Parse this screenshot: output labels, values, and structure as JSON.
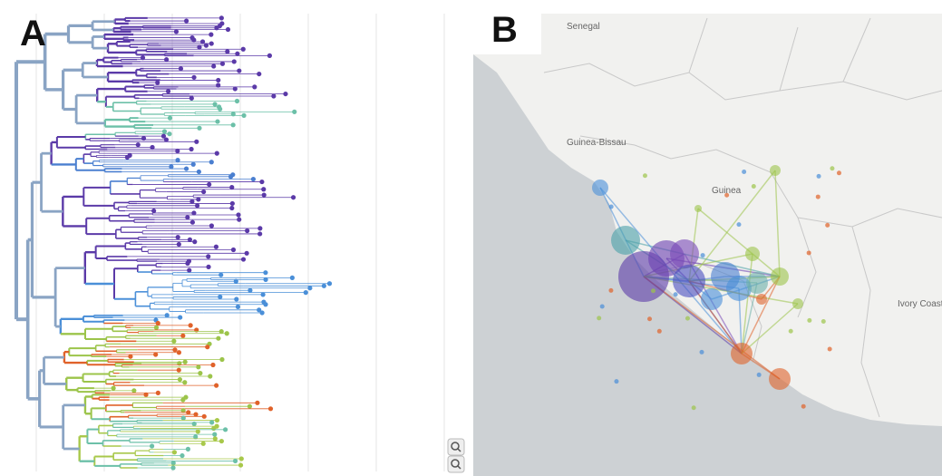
{
  "panels": [
    {
      "label": "A"
    },
    {
      "label": "B"
    }
  ],
  "map": {
    "labels": [
      "Senegal",
      "Guinea-Bissau",
      "Guinea",
      "Ivory Coast"
    ]
  }
}
